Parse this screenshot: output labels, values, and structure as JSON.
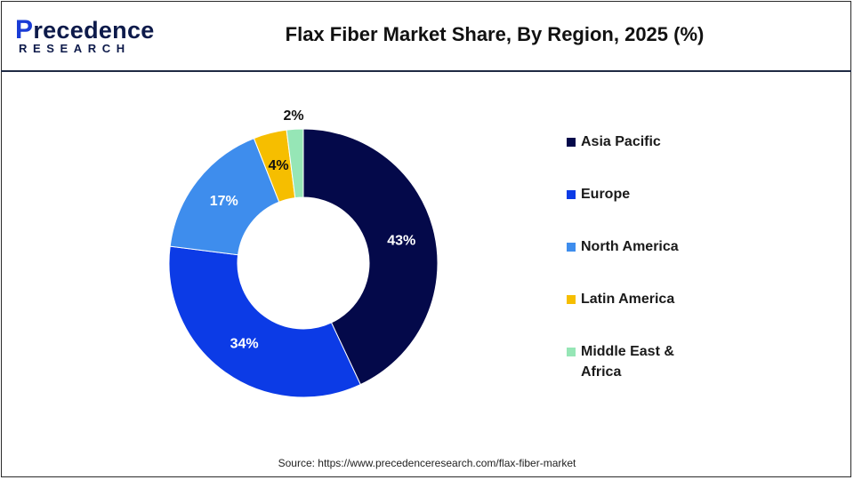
{
  "brand": {
    "logo_main": "recedence",
    "logo_initial": "P",
    "logo_sub": "RESEARCH"
  },
  "title": "Flax Fiber Market Share, By Region, 2025 (%)",
  "source": "Source: https://www.precedenceresearch.com/flax-fiber-market",
  "chart_data": {
    "type": "pie",
    "variant": "donut",
    "title": "Flax Fiber Market Share, By Region, 2025 (%)",
    "categories": [
      "Asia Pacific",
      "Europe",
      "North America",
      "Latin America",
      "Middle East & Africa"
    ],
    "values": [
      43,
      34,
      17,
      4,
      2
    ],
    "labels": [
      "43%",
      "34%",
      "17%",
      "4%",
      "2%"
    ],
    "colors": [
      "#04094a",
      "#0c3be6",
      "#3e8ded",
      "#f6be00",
      "#96e6b6"
    ],
    "unit": "%",
    "legend_position": "right"
  }
}
